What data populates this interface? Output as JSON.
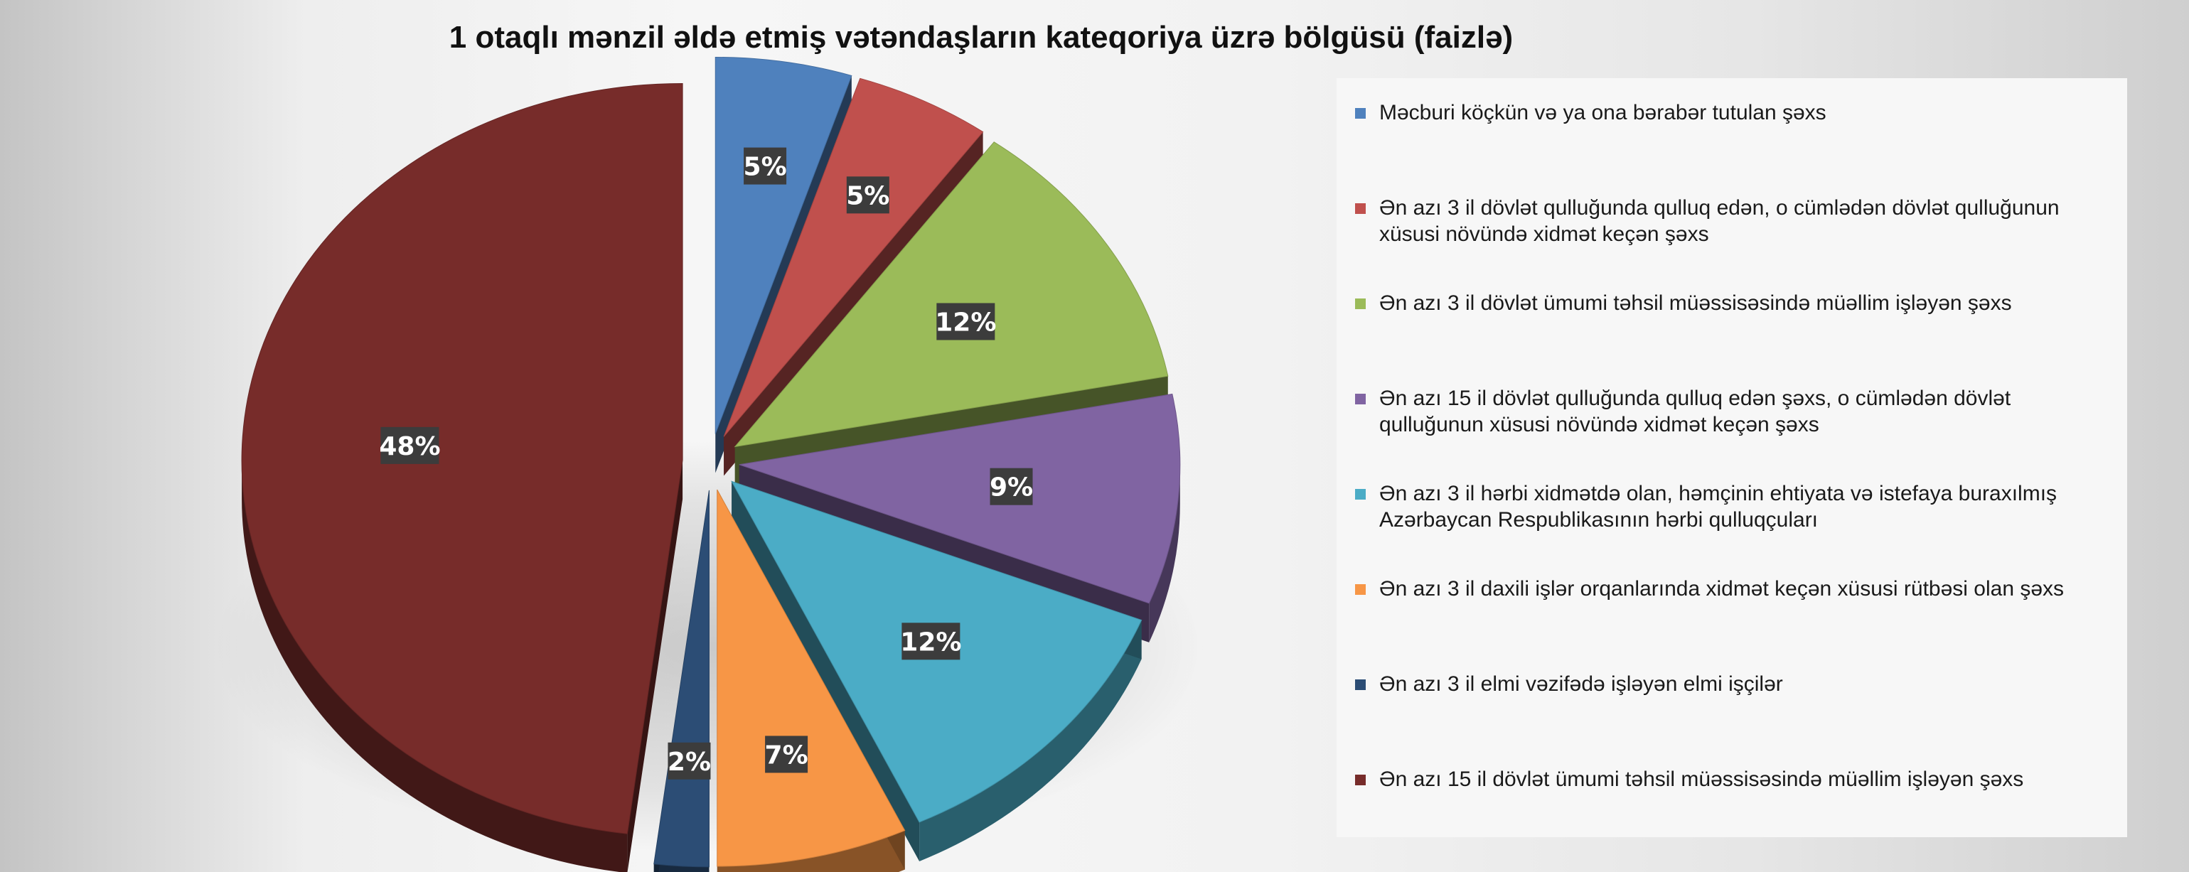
{
  "chart_data": {
    "type": "pie",
    "title": "1 otaqlı mənzil əldə etmiş vətəndaşların kateqoriya üzrə bölgüsü (faizlə)",
    "legend_position": "right",
    "slices": [
      {
        "label": "Məcburi köçkün və ya ona bərabər tutulan şəxs",
        "value": 5,
        "value_label": "5%",
        "color": "#4f81bd"
      },
      {
        "label": "Ən azı 3 il dövlət qulluğunda qulluq edən, o cümlədən dövlət qulluğunun xüsusi növündə xidmət keçən şəxs",
        "value": 5,
        "value_label": "5%",
        "color": "#c0504d"
      },
      {
        "label": "Ən azı 3 il dövlət ümumi təhsil müəssisəsində müəllim işləyən şəxs",
        "value": 12,
        "value_label": "12%",
        "color": "#9bbb59"
      },
      {
        "label": "Ən azı 15 il dövlət qulluğunda qulluq edən şəxs, o cümlədən dövlət qulluğunun xüsusi növündə xidmət keçən şəxs",
        "value": 9,
        "value_label": "9%",
        "color": "#8064a2"
      },
      {
        "label": "Ən azı 3 il hərbi xidmətdə olan, həmçinin ehtiyata və istefaya buraxılmış Azərbaycan Respublikasının hərbi qulluqçuları",
        "value": 12,
        "value_label": "12%",
        "color": "#4bacc6"
      },
      {
        "label": "Ən azı 3 il daxili işlər orqanlarında xidmət keçən xüsusi rütbəsi olan şəxs",
        "value": 7,
        "value_label": "7%",
        "color": "#f79646"
      },
      {
        "label": "Ən azı 3 il elmi vəzifədə işləyən elmi işçilər",
        "value": 2,
        "value_label": "2%",
        "color": "#2c4d75"
      },
      {
        "label": "Ən azı 15 il dövlət ümumi təhsil müəssisəsində müəllim işləyən şəxs",
        "value": 48,
        "value_label": "48%",
        "color": "#772c2a"
      }
    ]
  }
}
